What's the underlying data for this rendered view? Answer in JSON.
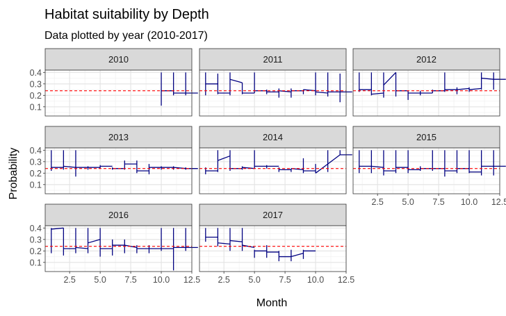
{
  "chart_data": {
    "type": "line",
    "title": "Habitat suitability by Depth",
    "subtitle": "Data plotted by year (2010-2017)",
    "xlabel": "Month",
    "ylabel": "Probability",
    "xlim": [
      0.5,
      12.5
    ],
    "ylim": [
      0.02,
      0.42
    ],
    "x_ticks": [
      "2.5",
      "5.0",
      "7.5",
      "10.0",
      "12.5"
    ],
    "y_ticks": [
      "0.1",
      "0.2",
      "0.3",
      "0.4"
    ],
    "reference_line": {
      "y": 0.24,
      "color": "#ff0000",
      "style": "dashed"
    },
    "line_color": "#000080",
    "grid": true,
    "panels": [
      {
        "label": "2010",
        "segments": [
          {
            "month": 10,
            "start": 0.24,
            "end": 0.24,
            "min": 0.11,
            "max": 0.4
          },
          {
            "month": 11,
            "start": 0.22,
            "end": 0.22,
            "min": 0.2,
            "max": 0.4
          },
          {
            "month": 12,
            "start": 0.22,
            "end": 0.22,
            "min": 0.2,
            "max": 0.4
          }
        ]
      },
      {
        "label": "2011",
        "segments": [
          {
            "month": 1,
            "start": 0.3,
            "end": 0.3,
            "min": 0.2,
            "max": 0.4
          },
          {
            "month": 2,
            "start": 0.22,
            "end": 0.22,
            "min": 0.21,
            "max": 0.39
          },
          {
            "month": 3,
            "start": 0.34,
            "end": 0.31,
            "min": 0.2,
            "max": 0.4
          },
          {
            "month": 4,
            "start": 0.22,
            "end": 0.22,
            "min": 0.21,
            "max": 0.31
          },
          {
            "month": 5,
            "start": 0.24,
            "end": 0.24,
            "min": 0.22,
            "max": 0.4
          },
          {
            "month": 6,
            "start": 0.23,
            "end": 0.23,
            "min": 0.21,
            "max": 0.25
          },
          {
            "month": 7,
            "start": 0.24,
            "end": 0.23,
            "min": 0.18,
            "max": 0.26
          },
          {
            "month": 8,
            "start": 0.24,
            "end": 0.24,
            "min": 0.18,
            "max": 0.26
          },
          {
            "month": 9,
            "start": 0.25,
            "end": 0.24,
            "min": 0.21,
            "max": 0.25
          },
          {
            "month": 10,
            "start": 0.23,
            "end": 0.22,
            "min": 0.2,
            "max": 0.4
          },
          {
            "month": 11,
            "start": 0.23,
            "end": 0.23,
            "min": 0.19,
            "max": 0.4
          },
          {
            "month": 12,
            "start": 0.23,
            "end": 0.23,
            "min": 0.14,
            "max": 0.39
          }
        ]
      },
      {
        "label": "2012",
        "segments": [
          {
            "month": 1,
            "start": 0.25,
            "end": 0.25,
            "min": 0.23,
            "max": 0.4
          },
          {
            "month": 2,
            "start": 0.21,
            "end": 0.22,
            "min": 0.2,
            "max": 0.4
          },
          {
            "month": 3,
            "start": 0.29,
            "end": 0.4,
            "min": 0.18,
            "max": 0.4
          },
          {
            "month": 4,
            "start": 0.24,
            "end": 0.24,
            "min": 0.19,
            "max": 0.4
          },
          {
            "month": 5,
            "start": 0.22,
            "end": 0.22,
            "min": 0.16,
            "max": 0.24
          },
          {
            "month": 6,
            "start": 0.22,
            "end": 0.22,
            "min": 0.2,
            "max": 0.24
          },
          {
            "month": 7,
            "start": 0.24,
            "end": 0.24,
            "min": 0.22,
            "max": 0.25
          },
          {
            "month": 8,
            "start": 0.25,
            "end": 0.25,
            "min": 0.23,
            "max": 0.4
          },
          {
            "month": 9,
            "start": 0.25,
            "end": 0.26,
            "min": 0.21,
            "max": 0.27
          },
          {
            "month": 10,
            "start": 0.25,
            "end": 0.26,
            "min": 0.23,
            "max": 0.27
          },
          {
            "month": 11,
            "start": 0.35,
            "end": 0.34,
            "min": 0.25,
            "max": 0.4
          },
          {
            "month": 12,
            "start": 0.34,
            "end": 0.34,
            "min": 0.25,
            "max": 0.4
          }
        ]
      },
      {
        "label": "2013",
        "segments": [
          {
            "month": 1,
            "start": 0.25,
            "end": 0.25,
            "min": 0.22,
            "max": 0.4
          },
          {
            "month": 2,
            "start": 0.26,
            "end": 0.25,
            "min": 0.23,
            "max": 0.4
          },
          {
            "month": 3,
            "start": 0.25,
            "end": 0.25,
            "min": 0.17,
            "max": 0.4
          },
          {
            "month": 4,
            "start": 0.25,
            "end": 0.25,
            "min": 0.23,
            "max": 0.26
          },
          {
            "month": 5,
            "start": 0.26,
            "end": 0.26,
            "min": 0.24,
            "max": 0.27
          },
          {
            "month": 6,
            "start": 0.24,
            "end": 0.24,
            "min": 0.23,
            "max": 0.25
          },
          {
            "month": 7,
            "start": 0.28,
            "end": 0.28,
            "min": 0.23,
            "max": 0.31
          },
          {
            "month": 8,
            "start": 0.22,
            "end": 0.22,
            "min": 0.2,
            "max": 0.31
          },
          {
            "month": 9,
            "start": 0.25,
            "end": 0.25,
            "min": 0.19,
            "max": 0.28
          },
          {
            "month": 10,
            "start": 0.25,
            "end": 0.25,
            "min": 0.23,
            "max": 0.26
          },
          {
            "month": 11,
            "start": 0.25,
            "end": 0.24,
            "min": 0.23,
            "max": 0.26
          },
          {
            "month": 12,
            "start": 0.24,
            "end": 0.24,
            "min": 0.23,
            "max": 0.25
          }
        ]
      },
      {
        "label": "2014",
        "segments": [
          {
            "month": 1,
            "start": 0.22,
            "end": 0.22,
            "min": 0.19,
            "max": 0.25
          },
          {
            "month": 2,
            "start": 0.31,
            "end": 0.35,
            "min": 0.21,
            "max": 0.4
          },
          {
            "month": 3,
            "start": 0.24,
            "end": 0.24,
            "min": 0.22,
            "max": 0.4
          },
          {
            "month": 4,
            "start": 0.25,
            "end": 0.24,
            "min": 0.23,
            "max": 0.26
          },
          {
            "month": 5,
            "start": 0.26,
            "end": 0.26,
            "min": 0.24,
            "max": 0.4
          },
          {
            "month": 6,
            "start": 0.26,
            "end": 0.26,
            "min": 0.24,
            "max": 0.27
          },
          {
            "month": 7,
            "start": 0.23,
            "end": 0.23,
            "min": 0.21,
            "max": 0.25
          },
          {
            "month": 8,
            "start": 0.24,
            "end": 0.23,
            "min": 0.21,
            "max": 0.24
          },
          {
            "month": 9,
            "start": 0.22,
            "end": 0.22,
            "min": 0.2,
            "max": 0.33
          },
          {
            "month": 10,
            "start": 0.2,
            "end": 0.28,
            "min": 0.2,
            "max": 0.28
          },
          {
            "month": 11,
            "start": 0.28,
            "end": 0.36,
            "min": 0.21,
            "max": 0.4
          },
          {
            "month": 12,
            "start": 0.36,
            "end": 0.36,
            "min": 0.36,
            "max": 0.4
          }
        ]
      },
      {
        "label": "2015",
        "segments": [
          {
            "month": 1,
            "start": 0.26,
            "end": 0.26,
            "min": 0.2,
            "max": 0.4
          },
          {
            "month": 2,
            "start": 0.26,
            "end": 0.25,
            "min": 0.2,
            "max": 0.4
          },
          {
            "month": 3,
            "start": 0.22,
            "end": 0.22,
            "min": 0.18,
            "max": 0.4
          },
          {
            "month": 4,
            "start": 0.25,
            "end": 0.25,
            "min": 0.2,
            "max": 0.4
          },
          {
            "month": 5,
            "start": 0.23,
            "end": 0.23,
            "min": 0.2,
            "max": 0.4
          },
          {
            "month": 6,
            "start": 0.24,
            "end": 0.24,
            "min": 0.22,
            "max": 0.26
          },
          {
            "month": 7,
            "start": 0.24,
            "end": 0.24,
            "min": 0.22,
            "max": 0.4
          },
          {
            "month": 8,
            "start": 0.22,
            "end": 0.22,
            "min": 0.17,
            "max": 0.4
          },
          {
            "month": 9,
            "start": 0.24,
            "end": 0.24,
            "min": 0.2,
            "max": 0.4
          },
          {
            "month": 10,
            "start": 0.21,
            "end": 0.21,
            "min": 0.2,
            "max": 0.4
          },
          {
            "month": 11,
            "start": 0.26,
            "end": 0.26,
            "min": 0.18,
            "max": 0.4
          },
          {
            "month": 12,
            "start": 0.26,
            "end": 0.26,
            "min": 0.18,
            "max": 0.4
          }
        ]
      },
      {
        "label": "2016",
        "segments": [
          {
            "month": 1,
            "start": 0.39,
            "end": 0.4,
            "min": 0.18,
            "max": 0.4
          },
          {
            "month": 2,
            "start": 0.22,
            "end": 0.22,
            "min": 0.16,
            "max": 0.4
          },
          {
            "month": 3,
            "start": 0.23,
            "end": 0.22,
            "min": 0.18,
            "max": 0.4
          },
          {
            "month": 4,
            "start": 0.27,
            "end": 0.3,
            "min": 0.18,
            "max": 0.4
          },
          {
            "month": 5,
            "start": 0.22,
            "end": 0.22,
            "min": 0.15,
            "max": 0.4
          },
          {
            "month": 6,
            "start": 0.25,
            "end": 0.25,
            "min": 0.16,
            "max": 0.3
          },
          {
            "month": 7,
            "start": 0.25,
            "end": 0.23,
            "min": 0.18,
            "max": 0.3
          },
          {
            "month": 8,
            "start": 0.22,
            "end": 0.22,
            "min": 0.18,
            "max": 0.25
          },
          {
            "month": 9,
            "start": 0.22,
            "end": 0.22,
            "min": 0.18,
            "max": 0.25
          },
          {
            "month": 10,
            "start": 0.22,
            "end": 0.22,
            "min": 0.2,
            "max": 0.4
          },
          {
            "month": 11,
            "start": 0.23,
            "end": 0.23,
            "min": 0.03,
            "max": 0.4
          },
          {
            "month": 12,
            "start": 0.23,
            "end": 0.23,
            "min": 0.2,
            "max": 0.4
          }
        ]
      },
      {
        "label": "2017",
        "segments": [
          {
            "month": 1,
            "start": 0.32,
            "end": 0.32,
            "min": 0.28,
            "max": 0.4
          },
          {
            "month": 2,
            "start": 0.27,
            "end": 0.26,
            "min": 0.24,
            "max": 0.4
          },
          {
            "month": 3,
            "start": 0.29,
            "end": 0.28,
            "min": 0.2,
            "max": 0.4
          },
          {
            "month": 4,
            "start": 0.25,
            "end": 0.23,
            "min": 0.2,
            "max": 0.4
          },
          {
            "month": 5,
            "start": 0.2,
            "end": 0.2,
            "min": 0.14,
            "max": 0.21
          },
          {
            "month": 6,
            "start": 0.19,
            "end": 0.19,
            "min": 0.14,
            "max": 0.25
          },
          {
            "month": 7,
            "start": 0.15,
            "end": 0.15,
            "min": 0.11,
            "max": 0.2
          },
          {
            "month": 8,
            "start": 0.15,
            "end": 0.18,
            "min": 0.11,
            "max": 0.21
          },
          {
            "month": 9,
            "start": 0.2,
            "end": 0.2,
            "min": 0.13,
            "max": 0.21
          }
        ]
      }
    ]
  }
}
